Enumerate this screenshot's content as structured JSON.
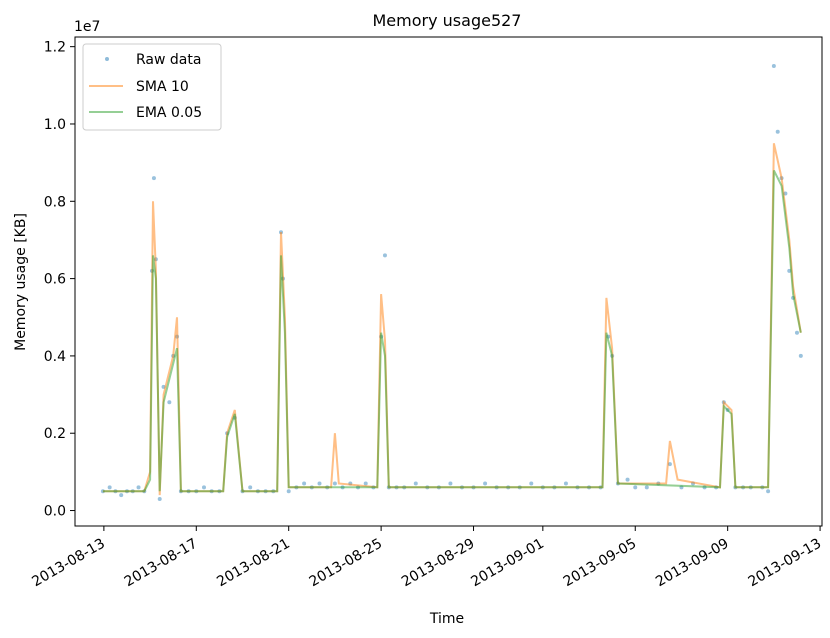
{
  "chart_data": {
    "type": "line",
    "title": "Memory usage527",
    "xlabel": "Time",
    "ylabel": "Memory usage [KB]",
    "y_offset_label": "1e7",
    "y_ticks": [
      0.0,
      0.2,
      0.4,
      0.6,
      0.8,
      1.0,
      1.2
    ],
    "y_tick_labels": [
      "0.0",
      "0.2",
      "0.4",
      "0.6",
      "0.8",
      "1.0",
      "1.2"
    ],
    "ylim": [
      -0.04,
      1.225
    ],
    "xlim": [
      "2013-08-11T18:00",
      "2013-09-13T02:00"
    ],
    "x_ticks": [
      "2013-08-13",
      "2013-08-17",
      "2013-08-21",
      "2013-08-25",
      "2013-08-29",
      "2013-09-01",
      "2013-09-05",
      "2013-09-09",
      "2013-09-13"
    ],
    "x_tick_labels": [
      "2013-08-13",
      "2013-08-17",
      "2013-08-21",
      "2013-08-25",
      "2013-08-29",
      "2013-09-01",
      "2013-09-05",
      "2013-09-09",
      "2013-09-13"
    ],
    "legend_position": "top-left",
    "grid": false,
    "series": [
      {
        "name": "Raw data",
        "style": "markers",
        "color": "#1f77b4",
        "points": [
          [
            "2013-08-12T23:00",
            0.05
          ],
          [
            "2013-08-13T06:00",
            0.06
          ],
          [
            "2013-08-13T12:00",
            0.05
          ],
          [
            "2013-08-13T18:00",
            0.04
          ],
          [
            "2013-08-14T00:00",
            0.05
          ],
          [
            "2013-08-14T06:00",
            0.05
          ],
          [
            "2013-08-14T12:00",
            0.06
          ],
          [
            "2013-08-14T18:00",
            0.05
          ],
          [
            "2013-08-15T02:00",
            0.62
          ],
          [
            "2013-08-15T04:00",
            0.86
          ],
          [
            "2013-08-15T06:00",
            0.65
          ],
          [
            "2013-08-15T10:00",
            0.03
          ],
          [
            "2013-08-15T14:00",
            0.32
          ],
          [
            "2013-08-15T20:00",
            0.28
          ],
          [
            "2013-08-16T00:00",
            0.4
          ],
          [
            "2013-08-16T04:00",
            0.45
          ],
          [
            "2013-08-16T08:00",
            0.05
          ],
          [
            "2013-08-16T16:00",
            0.05
          ],
          [
            "2013-08-17T00:00",
            0.05
          ],
          [
            "2013-08-17T08:00",
            0.06
          ],
          [
            "2013-08-17T16:00",
            0.05
          ],
          [
            "2013-08-18T00:00",
            0.05
          ],
          [
            "2013-08-18T08:00",
            0.2
          ],
          [
            "2013-08-18T16:00",
            0.24
          ],
          [
            "2013-08-19T00:00",
            0.05
          ],
          [
            "2013-08-19T08:00",
            0.06
          ],
          [
            "2013-08-19T16:00",
            0.05
          ],
          [
            "2013-08-20T00:00",
            0.05
          ],
          [
            "2013-08-20T08:00",
            0.05
          ],
          [
            "2013-08-20T16:00",
            0.72
          ],
          [
            "2013-08-20T18:00",
            0.6
          ],
          [
            "2013-08-21T00:00",
            0.05
          ],
          [
            "2013-08-21T08:00",
            0.06
          ],
          [
            "2013-08-21T16:00",
            0.07
          ],
          [
            "2013-08-22T00:00",
            0.06
          ],
          [
            "2013-08-22T08:00",
            0.07
          ],
          [
            "2013-08-22T16:00",
            0.06
          ],
          [
            "2013-08-23T00:00",
            0.07
          ],
          [
            "2013-08-23T08:00",
            0.06
          ],
          [
            "2013-08-23T16:00",
            0.07
          ],
          [
            "2013-08-24T00:00",
            0.06
          ],
          [
            "2013-08-24T08:00",
            0.07
          ],
          [
            "2013-08-24T16:00",
            0.06
          ],
          [
            "2013-08-25T00:00",
            0.45
          ],
          [
            "2013-08-25T04:00",
            0.66
          ],
          [
            "2013-08-25T08:00",
            0.06
          ],
          [
            "2013-08-25T16:00",
            0.06
          ],
          [
            "2013-08-26T00:00",
            0.06
          ],
          [
            "2013-08-26T12:00",
            0.07
          ],
          [
            "2013-08-27T00:00",
            0.06
          ],
          [
            "2013-08-27T12:00",
            0.06
          ],
          [
            "2013-08-28T00:00",
            0.07
          ],
          [
            "2013-08-28T12:00",
            0.06
          ],
          [
            "2013-08-29T00:00",
            0.06
          ],
          [
            "2013-08-29T12:00",
            0.07
          ],
          [
            "2013-08-30T00:00",
            0.06
          ],
          [
            "2013-08-30T12:00",
            0.06
          ],
          [
            "2013-08-31T00:00",
            0.06
          ],
          [
            "2013-08-31T12:00",
            0.07
          ],
          [
            "2013-09-01T00:00",
            0.06
          ],
          [
            "2013-09-01T12:00",
            0.06
          ],
          [
            "2013-09-02T00:00",
            0.07
          ],
          [
            "2013-09-02T12:00",
            0.06
          ],
          [
            "2013-09-03T00:00",
            0.06
          ],
          [
            "2013-09-03T12:00",
            0.06
          ],
          [
            "2013-09-03T20:00",
            0.45
          ],
          [
            "2013-09-04T00:00",
            0.4
          ],
          [
            "2013-09-04T06:00",
            0.07
          ],
          [
            "2013-09-04T16:00",
            0.08
          ],
          [
            "2013-09-05T00:00",
            0.06
          ],
          [
            "2013-09-05T12:00",
            0.06
          ],
          [
            "2013-09-06T00:00",
            0.07
          ],
          [
            "2013-09-06T12:00",
            0.12
          ],
          [
            "2013-09-07T00:00",
            0.06
          ],
          [
            "2013-09-07T12:00",
            0.07
          ],
          [
            "2013-09-08T00:00",
            0.06
          ],
          [
            "2013-09-08T12:00",
            0.06
          ],
          [
            "2013-09-08T20:00",
            0.28
          ],
          [
            "2013-09-09T00:00",
            0.26
          ],
          [
            "2013-09-09T08:00",
            0.06
          ],
          [
            "2013-09-09T16:00",
            0.06
          ],
          [
            "2013-09-10T00:00",
            0.06
          ],
          [
            "2013-09-10T12:00",
            0.06
          ],
          [
            "2013-09-10T18:00",
            0.05
          ],
          [
            "2013-09-11T00:00",
            1.15
          ],
          [
            "2013-09-11T04:00",
            0.98
          ],
          [
            "2013-09-11T08:00",
            0.86
          ],
          [
            "2013-09-11T12:00",
            0.82
          ],
          [
            "2013-09-11T16:00",
            0.62
          ],
          [
            "2013-09-11T20:00",
            0.55
          ],
          [
            "2013-09-12T00:00",
            0.46
          ],
          [
            "2013-09-12T04:00",
            0.4
          ]
        ]
      },
      {
        "name": "SMA 10",
        "style": "line",
        "color": "#ff7f0e",
        "points": [
          [
            "2013-08-12T23:00",
            0.05
          ],
          [
            "2013-08-14T18:00",
            0.05
          ],
          [
            "2013-08-15T00:00",
            0.1
          ],
          [
            "2013-08-15T03:00",
            0.8
          ],
          [
            "2013-08-15T06:00",
            0.62
          ],
          [
            "2013-08-15T10:00",
            0.04
          ],
          [
            "2013-08-15T14:00",
            0.3
          ],
          [
            "2013-08-16T00:00",
            0.4
          ],
          [
            "2013-08-16T04:00",
            0.5
          ],
          [
            "2013-08-16T08:00",
            0.05
          ],
          [
            "2013-08-18T04:00",
            0.05
          ],
          [
            "2013-08-18T08:00",
            0.2
          ],
          [
            "2013-08-18T16:00",
            0.26
          ],
          [
            "2013-08-19T00:00",
            0.05
          ],
          [
            "2013-08-20T12:00",
            0.05
          ],
          [
            "2013-08-20T16:00",
            0.72
          ],
          [
            "2013-08-20T20:00",
            0.5
          ],
          [
            "2013-08-21T00:00",
            0.06
          ],
          [
            "2013-08-22T20:00",
            0.06
          ],
          [
            "2013-08-23T00:00",
            0.2
          ],
          [
            "2013-08-23T04:00",
            0.07
          ],
          [
            "2013-08-24T20:00",
            0.06
          ],
          [
            "2013-08-25T00:00",
            0.56
          ],
          [
            "2013-08-25T04:00",
            0.44
          ],
          [
            "2013-08-25T08:00",
            0.06
          ],
          [
            "2013-09-03T14:00",
            0.06
          ],
          [
            "2013-09-03T18:00",
            0.55
          ],
          [
            "2013-09-04T00:00",
            0.42
          ],
          [
            "2013-09-04T06:00",
            0.07
          ],
          [
            "2013-09-06T08:00",
            0.07
          ],
          [
            "2013-09-06T12:00",
            0.18
          ],
          [
            "2013-09-06T20:00",
            0.08
          ],
          [
            "2013-09-08T16:00",
            0.06
          ],
          [
            "2013-09-08T20:00",
            0.28
          ],
          [
            "2013-09-09T04:00",
            0.26
          ],
          [
            "2013-09-09T08:00",
            0.06
          ],
          [
            "2013-09-10T18:00",
            0.06
          ],
          [
            "2013-09-11T00:00",
            0.95
          ],
          [
            "2013-09-11T08:00",
            0.86
          ],
          [
            "2013-09-11T16:00",
            0.7
          ],
          [
            "2013-09-11T20:00",
            0.58
          ],
          [
            "2013-09-12T04:00",
            0.46
          ]
        ]
      },
      {
        "name": "EMA 0.05",
        "style": "line",
        "color": "#2ca02c",
        "points": [
          [
            "2013-08-12T23:00",
            0.05
          ],
          [
            "2013-08-14T18:00",
            0.05
          ],
          [
            "2013-08-15T00:00",
            0.08
          ],
          [
            "2013-08-15T03:00",
            0.66
          ],
          [
            "2013-08-15T06:00",
            0.6
          ],
          [
            "2013-08-15T10:00",
            0.05
          ],
          [
            "2013-08-15T14:00",
            0.28
          ],
          [
            "2013-08-16T00:00",
            0.38
          ],
          [
            "2013-08-16T04:00",
            0.42
          ],
          [
            "2013-08-16T08:00",
            0.05
          ],
          [
            "2013-08-18T04:00",
            0.05
          ],
          [
            "2013-08-18T08:00",
            0.19
          ],
          [
            "2013-08-18T16:00",
            0.25
          ],
          [
            "2013-08-19T00:00",
            0.05
          ],
          [
            "2013-08-20T12:00",
            0.05
          ],
          [
            "2013-08-20T16:00",
            0.66
          ],
          [
            "2013-08-20T20:00",
            0.46
          ],
          [
            "2013-08-21T00:00",
            0.06
          ],
          [
            "2013-08-24T20:00",
            0.06
          ],
          [
            "2013-08-25T00:00",
            0.46
          ],
          [
            "2013-08-25T04:00",
            0.4
          ],
          [
            "2013-08-25T08:00",
            0.06
          ],
          [
            "2013-09-03T14:00",
            0.06
          ],
          [
            "2013-09-03T18:00",
            0.46
          ],
          [
            "2013-09-04T00:00",
            0.4
          ],
          [
            "2013-09-04T06:00",
            0.07
          ],
          [
            "2013-09-08T16:00",
            0.06
          ],
          [
            "2013-09-08T20:00",
            0.27
          ],
          [
            "2013-09-09T04:00",
            0.25
          ],
          [
            "2013-09-09T08:00",
            0.06
          ],
          [
            "2013-09-10T18:00",
            0.06
          ],
          [
            "2013-09-11T00:00",
            0.88
          ],
          [
            "2013-09-11T08:00",
            0.84
          ],
          [
            "2013-09-11T16:00",
            0.68
          ],
          [
            "2013-09-11T20:00",
            0.56
          ],
          [
            "2013-09-12T04:00",
            0.46
          ]
        ]
      }
    ]
  }
}
